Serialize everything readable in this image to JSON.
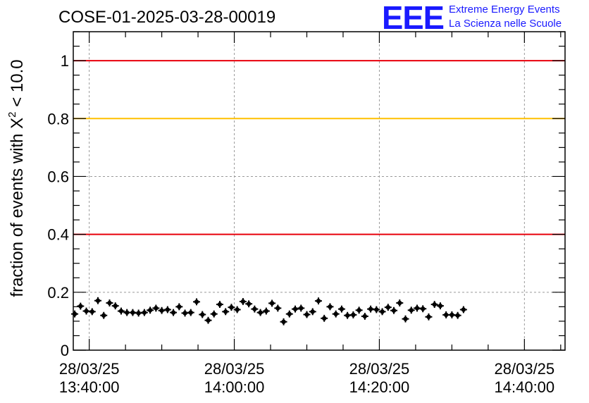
{
  "header": {
    "run_id": "COSE-01-2025-03-28-00019",
    "logo_text": "EEE",
    "logo_line1": "Extreme Energy Events",
    "logo_line2": "La Scienza nelle Scuole"
  },
  "chart_data": {
    "type": "scatter",
    "title": "COSE-01-2025-03-28-00019",
    "ylabel": "fraction of events with χ² < 10.0",
    "ylabel_parts": {
      "prefix": "fraction of events with ",
      "symbol": "X",
      "exponent": "2",
      "suffix": " < 10.0"
    },
    "xlabel": "",
    "ylim": [
      0,
      1.1
    ],
    "x_range_minutes": [
      -2.2,
      65.6
    ],
    "grid": true,
    "x_ticks": [
      {
        "minute": 0,
        "date": "28/03/25",
        "time": "13:40:00"
      },
      {
        "minute": 20,
        "date": "28/03/25",
        "time": "14:00:00"
      },
      {
        "minute": 40,
        "date": "28/03/25",
        "time": "14:20:00"
      },
      {
        "minute": 60,
        "date": "28/03/25",
        "time": "14:40:00"
      }
    ],
    "y_ticks": [
      {
        "value": 0,
        "label": "0"
      },
      {
        "value": 0.2,
        "label": "0.2"
      },
      {
        "value": 0.4,
        "label": "0.4"
      },
      {
        "value": 0.6,
        "label": "0.6"
      },
      {
        "value": 0.8,
        "label": "0.8"
      },
      {
        "value": 1.0,
        "label": "1"
      }
    ],
    "reference_lines": [
      {
        "value": 1.0,
        "color": "#e8000b"
      },
      {
        "value": 0.8,
        "color": "#ffc000"
      },
      {
        "value": 0.4,
        "color": "#e8000b"
      }
    ],
    "series": [
      {
        "color": "#000000",
        "x_start": "13:38:00",
        "x_step_minutes": 0.8,
        "y_error": 0.012,
        "values": [
          0.125,
          0.152,
          0.135,
          0.133,
          0.171,
          0.12,
          0.163,
          0.153,
          0.135,
          0.13,
          0.13,
          0.128,
          0.13,
          0.138,
          0.145,
          0.137,
          0.14,
          0.13,
          0.15,
          0.128,
          0.13,
          0.167,
          0.123,
          0.103,
          0.125,
          0.158,
          0.133,
          0.148,
          0.14,
          0.168,
          0.16,
          0.142,
          0.13,
          0.135,
          0.162,
          0.145,
          0.098,
          0.125,
          0.142,
          0.145,
          0.123,
          0.133,
          0.17,
          0.11,
          0.15,
          0.125,
          0.142,
          0.12,
          0.122,
          0.138,
          0.117,
          0.142,
          0.14,
          0.133,
          0.148,
          0.137,
          0.163,
          0.108,
          0.138,
          0.145,
          0.143,
          0.115,
          0.158,
          0.153,
          0.122,
          0.122,
          0.12,
          0.14
        ]
      }
    ]
  }
}
